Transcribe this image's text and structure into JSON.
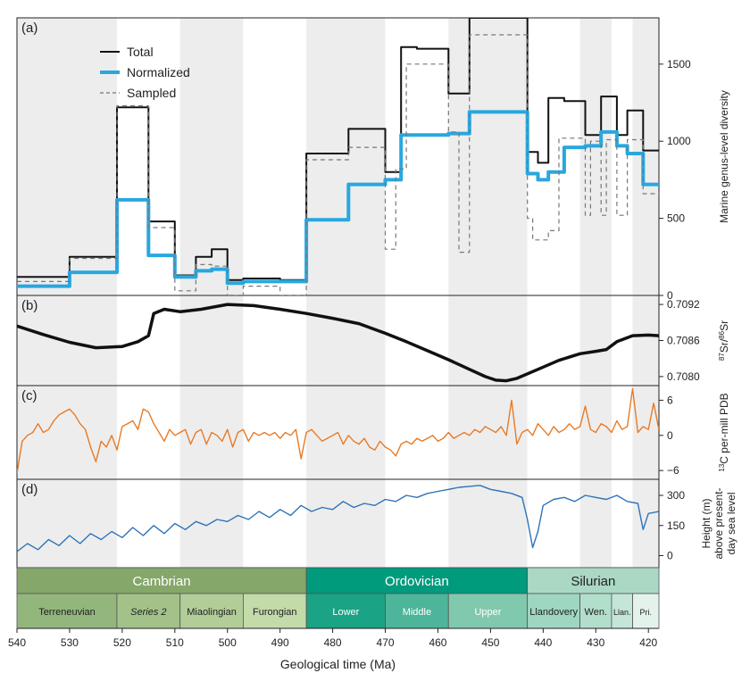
{
  "chart_data": {
    "type": "multi-panel",
    "x_axis": {
      "label": "Geological time (Ma)",
      "range": [
        540,
        418
      ],
      "reversed": true,
      "ticks": [
        540,
        530,
        520,
        510,
        500,
        490,
        480,
        470,
        460,
        450,
        440,
        430,
        420
      ]
    },
    "bands": [
      {
        "from": 540,
        "to": 521,
        "shaded": true
      },
      {
        "from": 521,
        "to": 509,
        "shaded": false
      },
      {
        "from": 509,
        "to": 497,
        "shaded": true
      },
      {
        "from": 497,
        "to": 485,
        "shaded": false
      },
      {
        "from": 485,
        "to": 470,
        "shaded": true
      },
      {
        "from": 470,
        "to": 458,
        "shaded": false
      },
      {
        "from": 458,
        "to": 443,
        "shaded": true
      },
      {
        "from": 443,
        "to": 433,
        "shaded": false
      },
      {
        "from": 433,
        "to": 427,
        "shaded": true
      },
      {
        "from": 427,
        "to": 423,
        "shaded": false
      },
      {
        "from": 423,
        "to": 418,
        "shaded": true
      }
    ],
    "panels": [
      {
        "id": "a",
        "label": "(a)",
        "type": "step",
        "ylabel": "Marine genus-level diversity",
        "ylim": [
          0,
          1800
        ],
        "yticks": [
          0,
          500,
          1000,
          1500
        ],
        "legend": [
          "Total",
          "Normalized",
          "Sampled"
        ],
        "series": [
          {
            "name": "Total",
            "color": "#111111",
            "dash": "none",
            "edges": [
              540,
              530,
              521,
              515,
              510,
              506,
              503,
              500,
              497,
              490,
              485,
              477,
              470,
              467,
              464,
              458,
              454,
              447,
              443,
              441,
              439,
              436,
              432,
              429,
              426,
              424,
              421,
              418
            ],
            "values": [
              120,
              250,
              1220,
              480,
              130,
              250,
              300,
              100,
              110,
              100,
              920,
              1080,
              800,
              1610,
              1600,
              1310,
              1800,
              1800,
              930,
              860,
              1280,
              1260,
              1040,
              1290,
              1040,
              1200,
              940
            ]
          },
          {
            "name": "Normalized",
            "color": "#29a7df",
            "dash": "none",
            "edges": [
              540,
              530,
              521,
              515,
              510,
              506,
              503,
              500,
              497,
              490,
              485,
              477,
              470,
              467,
              464,
              458,
              454,
              447,
              443,
              441,
              439,
              436,
              432,
              429,
              426,
              424,
              421,
              418
            ],
            "values": [
              60,
              150,
              620,
              260,
              120,
              160,
              170,
              80,
              90,
              90,
              490,
              720,
              750,
              1040,
              1040,
              1050,
              1190,
              1190,
              790,
              750,
              800,
              960,
              970,
              1060,
              970,
              920,
              720
            ]
          },
          {
            "name": "Sampled",
            "color": "#777777",
            "dash": "5,4",
            "edges": [
              540,
              530,
              521,
              515,
              510,
              506,
              503,
              500,
              497,
              490,
              485,
              477,
              470,
              468,
              466,
              464,
              458,
              456,
              454,
              447,
              443,
              442,
              441,
              439,
              437,
              436,
              432,
              431,
              429,
              428,
              426,
              424,
              421,
              418
            ],
            "values": [
              90,
              240,
              1230,
              440,
              30,
              200,
              190,
              0,
              60,
              0,
              880,
              960,
              300,
              820,
              1500,
              1500,
              1060,
              280,
              1690,
              1690,
              500,
              360,
              360,
              420,
              1020,
              1020,
              520,
              1000,
              520,
              1010,
              520,
              1010,
              660
            ]
          }
        ]
      },
      {
        "id": "b",
        "label": "(b)",
        "type": "line",
        "ylabel_html": [
          "87",
          "Sr/",
          "86",
          "Sr"
        ],
        "ylim": [
          0.70785,
          0.70935
        ],
        "yticks": [
          0.708,
          0.7086,
          0.7092
        ],
        "ytick_labels": [
          "0.7080",
          "0.7086",
          "0.7092"
        ],
        "series": [
          {
            "color": "#111111",
            "x": [
              540,
              535,
              530,
              525,
              520,
              517,
              515,
              514,
              512,
              509,
              505,
              500,
              495,
              490,
              485,
              480,
              475,
              470,
              466,
              462,
              458,
              454,
              451,
              449,
              447,
              445,
              441,
              437,
              433,
              430,
              428,
              426,
              423,
              420,
              418
            ],
            "y": [
              0.70884,
              0.7087,
              0.70857,
              0.70848,
              0.7085,
              0.70858,
              0.70868,
              0.70905,
              0.70912,
              0.70908,
              0.70912,
              0.7092,
              0.70918,
              0.70912,
              0.70905,
              0.70897,
              0.70888,
              0.70872,
              0.70858,
              0.70843,
              0.70828,
              0.70812,
              0.708,
              0.70794,
              0.70793,
              0.70797,
              0.70812,
              0.70827,
              0.70838,
              0.70842,
              0.70845,
              0.70858,
              0.70868,
              0.70869,
              0.70868
            ]
          }
        ]
      },
      {
        "id": "c",
        "label": "(c)",
        "type": "line",
        "ylabel": "δ13C per-mill PDB",
        "ylabel_html": [
          "13",
          "C per-mill PDB"
        ],
        "ylim": [
          -7.5,
          8.5
        ],
        "yticks": [
          -6,
          0,
          6
        ],
        "ytick_labels": [
          "−6",
          "0",
          "6"
        ],
        "series": [
          {
            "color": "#e87a26",
            "x": [
              540,
              539,
              538,
              537,
              536,
              535,
              534,
              533,
              532,
              531,
              530,
              529,
              528,
              527,
              526,
              525,
              524,
              523,
              522,
              521,
              520,
              519,
              518,
              517,
              516,
              515,
              514,
              513,
              512,
              511,
              510,
              509,
              508,
              507,
              506,
              505,
              504,
              503,
              502,
              501,
              500,
              499,
              498,
              497,
              496,
              495,
              494,
              493,
              492,
              491,
              490,
              489,
              488,
              487,
              486,
              485,
              484,
              483,
              482,
              481,
              480,
              479,
              478,
              477,
              476,
              475,
              474,
              473,
              472,
              471,
              470,
              469,
              468,
              467,
              466,
              465,
              464,
              463,
              462,
              461,
              460,
              459,
              458,
              457,
              456,
              455,
              454,
              453,
              452,
              451,
              450,
              449,
              448,
              447,
              446,
              445,
              444,
              443,
              442,
              441,
              440,
              439,
              438,
              437,
              436,
              435,
              434,
              433,
              432,
              431,
              430,
              429,
              428,
              427,
              426,
              425,
              424,
              423,
              422,
              421,
              420,
              419,
              418
            ],
            "y": [
              -6.5,
              -1.0,
              0.0,
              0.5,
              2.0,
              0.5,
              1.0,
              2.5,
              3.5,
              4.0,
              4.5,
              3.5,
              2.0,
              1.0,
              -2.0,
              -4.5,
              -1.0,
              -2.0,
              0.0,
              -2.5,
              1.5,
              2.0,
              2.5,
              1.0,
              4.5,
              4.0,
              2.0,
              0.5,
              -1.0,
              1.0,
              0.0,
              0.5,
              1.0,
              -1.5,
              0.5,
              1.0,
              -1.5,
              0.5,
              0.0,
              -1.0,
              1.0,
              -2.0,
              0.5,
              1.0,
              -1.0,
              0.5,
              0.0,
              0.5,
              0.0,
              0.5,
              -0.5,
              0.5,
              0.0,
              1.0,
              -4.0,
              0.5,
              1.0,
              0.0,
              -1.0,
              -0.5,
              0.0,
              0.5,
              -1.5,
              0.0,
              -1.0,
              -1.5,
              -0.5,
              -2.0,
              -2.5,
              -1.0,
              -2.0,
              -2.5,
              -3.5,
              -1.5,
              -1.0,
              -1.5,
              -0.5,
              -1.0,
              -0.5,
              0.0,
              -1.0,
              -0.5,
              0.5,
              -0.5,
              0.0,
              0.5,
              0.0,
              1.0,
              0.5,
              1.5,
              1.0,
              0.5,
              1.5,
              0.0,
              6.0,
              -1.5,
              0.5,
              1.0,
              0.0,
              2.0,
              1.0,
              0.0,
              1.5,
              0.5,
              1.0,
              2.0,
              1.0,
              1.5,
              5.0,
              1.0,
              0.5,
              2.0,
              1.5,
              0.5,
              2.5,
              1.0,
              1.5,
              8.0,
              0.5,
              1.5,
              1.0,
              5.5,
              1.0
            ]
          }
        ]
      },
      {
        "id": "d",
        "label": "(d)",
        "type": "line",
        "ylabel_lines": [
          "Height (m)",
          "above present-",
          "day sea level"
        ],
        "ylim": [
          -60,
          380
        ],
        "yticks": [
          0,
          150,
          300
        ],
        "series": [
          {
            "color": "#2e73b8",
            "x": [
              540,
              538,
              536,
              534,
              532,
              530,
              528,
              526,
              524,
              522,
              520,
              518,
              516,
              514,
              512,
              510,
              508,
              506,
              504,
              502,
              500,
              498,
              496,
              494,
              492,
              490,
              488,
              486,
              484,
              482,
              480,
              478,
              476,
              474,
              472,
              470,
              468,
              466,
              464,
              462,
              460,
              458,
              456,
              454,
              452,
              450,
              448,
              446,
              444,
              443,
              442,
              441,
              440,
              438,
              436,
              434,
              432,
              430,
              428,
              426,
              424,
              422,
              421,
              420,
              418
            ],
            "y": [
              20,
              60,
              30,
              80,
              50,
              100,
              60,
              110,
              80,
              120,
              90,
              140,
              100,
              150,
              110,
              160,
              130,
              170,
              150,
              180,
              170,
              200,
              180,
              220,
              190,
              230,
              200,
              250,
              220,
              240,
              230,
              270,
              240,
              260,
              250,
              280,
              270,
              300,
              290,
              310,
              320,
              330,
              340,
              345,
              350,
              330,
              320,
              310,
              290,
              180,
              40,
              120,
              250,
              280,
              290,
              270,
              300,
              290,
              280,
              300,
              270,
              260,
              130,
              210,
              220
            ]
          }
        ]
      }
    ],
    "periods": [
      {
        "name": "Cambrian",
        "from": 540,
        "to": 485,
        "color": "#85a76a"
      },
      {
        "name": "Ordovician",
        "from": 485,
        "to": 443,
        "color": "#009a7c"
      },
      {
        "name": "Silurian",
        "from": 443,
        "to": 418,
        "color": "#aad8c5"
      }
    ],
    "epochs": [
      {
        "name": "Terreneuvian",
        "from": 540,
        "to": 521,
        "color": "#93b67d",
        "italic": false
      },
      {
        "name": "Series 2",
        "from": 521,
        "to": 509,
        "color": "#a3c28a",
        "italic": true
      },
      {
        "name": "Miaolingian",
        "from": 509,
        "to": 497,
        "color": "#b2cd98",
        "italic": false
      },
      {
        "name": "Furongian",
        "from": 497,
        "to": 485,
        "color": "#c3daa9",
        "italic": false
      },
      {
        "name": "Lower",
        "from": 485,
        "to": 470,
        "color": "#1aa384",
        "italic": false
      },
      {
        "name": "Middle",
        "from": 470,
        "to": 458,
        "color": "#4db59a",
        "italic": false
      },
      {
        "name": "Upper",
        "from": 458,
        "to": 443,
        "color": "#80c9af",
        "italic": false
      },
      {
        "name": "Llandovery",
        "from": 443,
        "to": 433,
        "color": "#9fd6c2",
        "italic": false
      },
      {
        "name": "Wen.",
        "from": 433,
        "to": 427,
        "color": "#b2dfcc",
        "italic": false
      },
      {
        "name": "Llan.",
        "from": 427,
        "to": 423,
        "color": "#c4e6d8",
        "italic": false
      },
      {
        "name": "Pri.",
        "from": 423,
        "to": 418,
        "color": "#e4f2ec",
        "italic": false
      }
    ]
  }
}
